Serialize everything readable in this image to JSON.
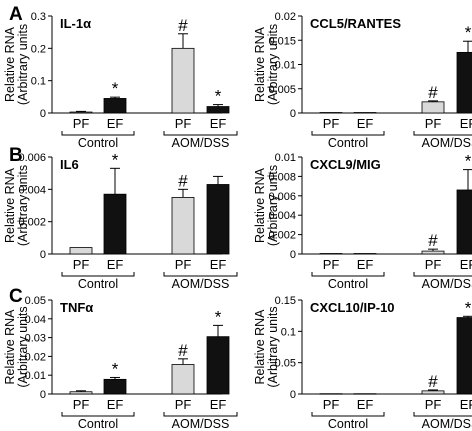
{
  "panel_letters": [
    "A",
    "B",
    "C"
  ],
  "colors": {
    "pf": "#d9d9d9",
    "ef": "#111111",
    "axis": "#000000"
  },
  "chart_data": [
    {
      "type": "bar",
      "panel": "A",
      "title": "IL-1α",
      "ylabel_line1": "Relative RNA",
      "ylabel_line2": "(Arbitrary units",
      "ylim": [
        0,
        0.3
      ],
      "yticks": [
        "0",
        "0.1",
        "0.2",
        "0.3"
      ],
      "categories": [
        "PF",
        "EF",
        "PF",
        "EF"
      ],
      "groups": [
        "Control",
        "AOM/DSS"
      ],
      "values": [
        0.003,
        0.045,
        0.2,
        0.02
      ],
      "errors": [
        0.002,
        0.004,
        0.045,
        0.006
      ],
      "marks": [
        "",
        "*",
        "#",
        "*"
      ]
    },
    {
      "type": "bar",
      "panel": "A",
      "title": "CCL5/RANTES",
      "ylabel_line1": "Relative RNA",
      "ylabel_line2": "(Arbitrary units",
      "ylim": [
        0,
        0.02
      ],
      "yticks": [
        "0",
        "0.005",
        "0.01",
        "0.015",
        "0.02"
      ],
      "categories": [
        "PF",
        "EF",
        "PF",
        "EF"
      ],
      "groups": [
        "Control",
        "AOM/DSS"
      ],
      "values": [
        0.0001,
        0.0001,
        0.0023,
        0.0125
      ],
      "errors": [
        0,
        0,
        0.0002,
        0.0023
      ],
      "marks": [
        "",
        "",
        "#",
        "*"
      ]
    },
    {
      "type": "bar",
      "panel": "B",
      "title": "IL6",
      "ylabel_line1": "Relative RNA",
      "ylabel_line2": "(Arbitrary units",
      "ylim": [
        0,
        0.006
      ],
      "yticks": [
        "0",
        "0.002",
        "0.004",
        "0.006"
      ],
      "categories": [
        "PF",
        "EF",
        "PF",
        "EF"
      ],
      "groups": [
        "Control",
        "AOM/DSS"
      ],
      "values": [
        0.0004,
        0.0037,
        0.0035,
        0.0043
      ],
      "errors": [
        0,
        0.0016,
        0.0005,
        0.0005
      ],
      "marks": [
        "",
        "*",
        "#",
        ""
      ]
    },
    {
      "type": "bar",
      "panel": "B",
      "title": "CXCL9/MIG",
      "ylabel_line1": "Relative RNA",
      "ylabel_line2": "(Arbitrary units",
      "ylim": [
        0,
        0.01
      ],
      "yticks": [
        "0",
        "0.002",
        "0.004",
        "0.006",
        "0.008",
        "0.01"
      ],
      "categories": [
        "PF",
        "EF",
        "PF",
        "EF"
      ],
      "groups": [
        "Control",
        "AOM/DSS"
      ],
      "values": [
        5e-05,
        5e-05,
        0.0003,
        0.0066
      ],
      "errors": [
        0,
        0,
        0.0002,
        0.0021
      ],
      "marks": [
        "",
        "",
        "#",
        "*"
      ]
    },
    {
      "type": "bar",
      "panel": "C",
      "title": "TNFα",
      "ylabel_line1": "Relative RNA",
      "ylabel_line2": "(Arbitrary units",
      "ylim": [
        0,
        0.05
      ],
      "yticks": [
        "0",
        "0.01",
        "0.02",
        "0.03",
        "0.04",
        "0.05"
      ],
      "categories": [
        "PF",
        "EF",
        "PF",
        "EF"
      ],
      "groups": [
        "Control",
        "AOM/DSS"
      ],
      "values": [
        0.0012,
        0.0078,
        0.0157,
        0.0305
      ],
      "errors": [
        0.0005,
        0.001,
        0.003,
        0.006
      ],
      "marks": [
        "",
        "*",
        "#",
        "*"
      ]
    },
    {
      "type": "bar",
      "panel": "C",
      "title": "CXCL10/IP-10",
      "ylabel_line1": "Relative RNA",
      "ylabel_line2": "(Arbitrary units",
      "ylim": [
        0,
        0.15
      ],
      "yticks": [
        "0",
        "0.05",
        "0.1",
        "0.15"
      ],
      "categories": [
        "PF",
        "EF",
        "PF",
        "EF"
      ],
      "groups": [
        "Control",
        "AOM/DSS"
      ],
      "values": [
        0.0005,
        0.0005,
        0.005,
        0.122
      ],
      "errors": [
        0,
        0,
        0.0015,
        0.002
      ],
      "marks": [
        "",
        "",
        "#",
        "*"
      ]
    }
  ]
}
